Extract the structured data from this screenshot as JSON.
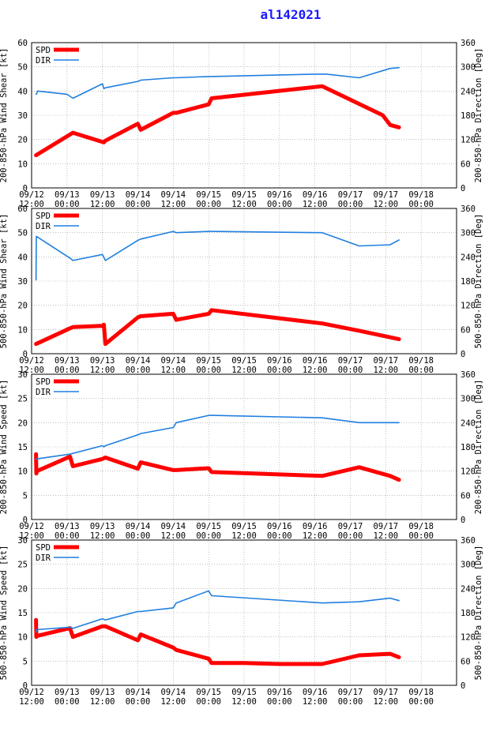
{
  "title": "al142021",
  "colors": {
    "spd": "#ff0000",
    "dir": "#1f7fdf",
    "title": "#1a1aff",
    "grid": "#9a9a9a"
  },
  "chart_data": [
    {
      "type": "line",
      "ylabel": "200-850-hPa Wind Shear [kt]",
      "y2label": "200-850-hPa Direction [Deg]",
      "ylim": [
        0,
        60
      ],
      "yticks": [
        "0",
        "10",
        "20",
        "30",
        "40",
        "50",
        "60"
      ],
      "y2lim": [
        0,
        360
      ],
      "y2ticks": [
        "0",
        "60",
        "120",
        "180",
        "240",
        "300",
        "360"
      ],
      "xlim": [
        0,
        144
      ],
      "xticks": [
        [
          "09/12",
          "12:00"
        ],
        [
          "09/13",
          "00:00"
        ],
        [
          "09/13",
          "12:00"
        ],
        [
          "09/14",
          "00:00"
        ],
        [
          "09/14",
          "12:00"
        ],
        [
          "09/15",
          "00:00"
        ],
        [
          "09/15",
          "12:00"
        ],
        [
          "09/16",
          "00:00"
        ],
        [
          "09/16",
          "12:00"
        ],
        [
          "09/17",
          "00:00"
        ],
        [
          "09/17",
          "12:00"
        ],
        [
          "09/18",
          "00:00"
        ]
      ],
      "legend": [
        "SPD",
        "DIR"
      ],
      "series": [
        {
          "name": "SPD",
          "axis": "left",
          "x": [
            1.5,
            14,
            24.5,
            25,
            36,
            37,
            48,
            49,
            60,
            61,
            98.5,
            119,
            121.5,
            124.5
          ],
          "values": [
            13.5,
            22.8,
            18.8,
            19.5,
            26.5,
            24,
            31,
            31,
            34.5,
            37,
            42,
            30,
            26,
            25
          ]
        },
        {
          "name": "DIR",
          "axis": "right",
          "x": [
            1.5,
            1.8,
            2,
            12,
            14,
            24,
            24.5,
            25,
            36,
            37,
            48,
            49,
            60,
            61,
            96,
            100,
            111,
            121.5,
            124.5
          ],
          "values": [
            232,
            234,
            240,
            232,
            222,
            258,
            246,
            248,
            264,
            267,
            273,
            273,
            276,
            276,
            282,
            282,
            273,
            296,
            298
          ]
        }
      ]
    },
    {
      "type": "line",
      "ylabel": "500-850-hPa Wind Shear [kt]",
      "y2label": "500-850-hPa Direction [Deg]",
      "ylim": [
        0,
        60
      ],
      "yticks": [
        "0",
        "10",
        "20",
        "30",
        "40",
        "50",
        "60"
      ],
      "y2lim": [
        0,
        360
      ],
      "y2ticks": [
        "0",
        "60",
        "120",
        "180",
        "240",
        "300",
        "360"
      ],
      "xlim": [
        0,
        144
      ],
      "xticks": [
        [
          "09/12",
          "12:00"
        ],
        [
          "09/13",
          "00:00"
        ],
        [
          "09/13",
          "12:00"
        ],
        [
          "09/14",
          "00:00"
        ],
        [
          "09/14",
          "12:00"
        ],
        [
          "09/15",
          "00:00"
        ],
        [
          "09/15",
          "12:00"
        ],
        [
          "09/16",
          "00:00"
        ],
        [
          "09/16",
          "12:00"
        ],
        [
          "09/17",
          "00:00"
        ],
        [
          "09/17",
          "12:00"
        ],
        [
          "09/18",
          "00:00"
        ]
      ],
      "legend": [
        "SPD",
        "DIR"
      ],
      "series": [
        {
          "name": "SPD",
          "axis": "left",
          "x": [
            1.5,
            13,
            14,
            24,
            24.5,
            25,
            36,
            37,
            48,
            49,
            60,
            61,
            98.5,
            111,
            124.5
          ],
          "values": [
            4,
            10.5,
            11,
            11.5,
            12,
            4,
            15,
            15.5,
            16.5,
            14,
            16.5,
            18,
            12.5,
            9.5,
            6
          ]
        },
        {
          "name": "DIR",
          "axis": "right",
          "x": [
            1.5,
            1.6,
            13,
            14,
            24,
            25,
            36,
            37,
            48,
            49,
            60,
            61,
            98.5,
            111,
            121.5,
            124.5
          ],
          "values": [
            183,
            291,
            237,
            231,
            246,
            231,
            281,
            284,
            303,
            300,
            303,
            303,
            300,
            267,
            270,
            282
          ]
        }
      ]
    },
    {
      "type": "line",
      "ylabel": "200-850-hPa Wind Speed [kt]",
      "y2label": "200-850-hPa Direction [Deg]",
      "ylim": [
        0,
        30
      ],
      "yticks": [
        "0",
        "5",
        "10",
        "15",
        "20",
        "25",
        "30"
      ],
      "y2lim": [
        0,
        360
      ],
      "y2ticks": [
        "0",
        "60",
        "120",
        "180",
        "240",
        "300",
        "360"
      ],
      "xlim": [
        0,
        144
      ],
      "xticks": [
        [
          "09/12",
          "12:00"
        ],
        [
          "09/13",
          "00:00"
        ],
        [
          "09/13",
          "12:00"
        ],
        [
          "09/14",
          "00:00"
        ],
        [
          "09/14",
          "12:00"
        ],
        [
          "09/15",
          "00:00"
        ],
        [
          "09/15",
          "12:00"
        ],
        [
          "09/16",
          "00:00"
        ],
        [
          "09/16",
          "12:00"
        ],
        [
          "09/17",
          "00:00"
        ],
        [
          "09/17",
          "12:00"
        ],
        [
          "09/18",
          "00:00"
        ]
      ],
      "legend": [
        "SPD",
        "DIR"
      ],
      "series": [
        {
          "name": "SPD",
          "axis": "left",
          "x": [
            1.5,
            1.6,
            1.8,
            13,
            14,
            24,
            25,
            36,
            37,
            48,
            49,
            60,
            61,
            98.5,
            111,
            121.5,
            124.5
          ],
          "values": [
            13.5,
            9.5,
            10,
            13,
            11,
            12.5,
            12.8,
            10.5,
            11.8,
            10.2,
            10.2,
            10.6,
            9.8,
            9,
            10.8,
            9,
            8.2
          ]
        },
        {
          "name": "DIR",
          "axis": "right",
          "x": [
            1.5,
            13,
            24,
            24.5,
            25,
            36,
            37,
            48,
            49,
            60,
            61,
            98.5,
            111,
            124.5
          ],
          "values": [
            150,
            162,
            183,
            180,
            183,
            210,
            213,
            228,
            240,
            258,
            258,
            252,
            240,
            240
          ]
        }
      ]
    },
    {
      "type": "line",
      "ylabel": "500-850-hPa Wind Speed [kt]",
      "y2label": "500-850-hPa Direction [Deg]",
      "ylim": [
        0,
        30
      ],
      "yticks": [
        "0",
        "5",
        "10",
        "15",
        "20",
        "25",
        "30"
      ],
      "y2lim": [
        0,
        360
      ],
      "y2ticks": [
        "0",
        "60",
        "120",
        "180",
        "240",
        "300",
        "360"
      ],
      "xlim": [
        0,
        144
      ],
      "xticks": [
        [
          "09/12",
          "12:00"
        ],
        [
          "09/13",
          "00:00"
        ],
        [
          "09/13",
          "12:00"
        ],
        [
          "09/14",
          "00:00"
        ],
        [
          "09/14",
          "12:00"
        ],
        [
          "09/15",
          "00:00"
        ],
        [
          "09/15",
          "12:00"
        ],
        [
          "09/16",
          "00:00"
        ],
        [
          "09/16",
          "12:00"
        ],
        [
          "09/17",
          "00:00"
        ],
        [
          "09/17",
          "12:00"
        ],
        [
          "09/18",
          "00:00"
        ]
      ],
      "legend": [
        "SPD",
        "DIR"
      ],
      "series": [
        {
          "name": "SPD",
          "axis": "left",
          "x": [
            1.5,
            1.6,
            1.8,
            13,
            14,
            24,
            25,
            36,
            37,
            48,
            49,
            60,
            61,
            72,
            84,
            98.5,
            111,
            121.5,
            124.5
          ],
          "values": [
            13.5,
            10,
            10.2,
            11.8,
            10,
            12.2,
            12.2,
            9.3,
            10.5,
            7.8,
            7.3,
            5.5,
            4.6,
            4.6,
            4.4,
            4.4,
            6.2,
            6.5,
            5.8
          ]
        },
        {
          "name": "DIR",
          "axis": "right",
          "x": [
            1.5,
            1.6,
            13,
            14,
            24,
            25,
            36,
            37,
            48,
            49,
            60,
            61,
            98.5,
            111,
            121.5,
            124.5
          ],
          "values": [
            132,
            138,
            144,
            141,
            165,
            162,
            183,
            183,
            192,
            204,
            234,
            222,
            204,
            207,
            216,
            210
          ]
        }
      ]
    }
  ]
}
